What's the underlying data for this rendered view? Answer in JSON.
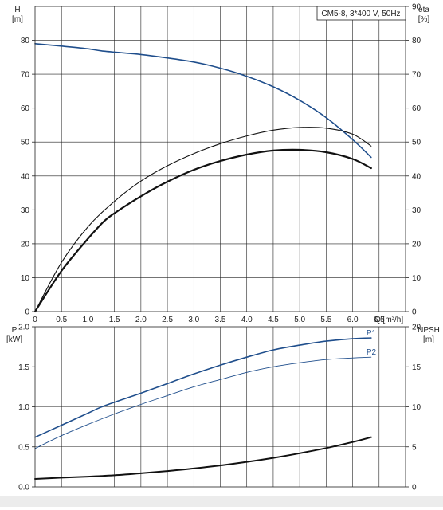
{
  "chart_data": [
    {
      "type": "line",
      "y_left_label": [
        "H",
        "[m]"
      ],
      "y_right_label": [
        "eta",
        "[%]"
      ],
      "x_axis_label": "Q [m³/h]",
      "legend": "CM5-8, 3*400 V, 50Hz",
      "legend_position": "top-right",
      "grid": true,
      "xlim": [
        0,
        7
      ],
      "ylim_left": [
        0,
        90
      ],
      "ylim_right": [
        0,
        90
      ],
      "x_ticks": [
        "0",
        "0.5",
        "1.0",
        "1.5",
        "2.0",
        "2.5",
        "3.0",
        "3.5",
        "4.0",
        "4.5",
        "5.0",
        "5.5",
        "6.0",
        "6.5"
      ],
      "y_ticks_left": [
        "0",
        "10",
        "20",
        "30",
        "40",
        "50",
        "60",
        "70",
        "80"
      ],
      "y_ticks_right": [
        "0",
        "10",
        "20",
        "30",
        "40",
        "50",
        "60",
        "70",
        "80",
        "90"
      ],
      "series": [
        {
          "color": "#1f4e8c",
          "x": [
            0,
            0.5,
            1.0,
            1.3,
            2.0,
            2.5,
            3.0,
            3.5,
            4.0,
            4.5,
            5.0,
            5.5,
            6.0,
            6.35
          ],
          "y": [
            79,
            78.3,
            77.5,
            76.8,
            75.8,
            74.8,
            73.6,
            71.8,
            69.4,
            66.3,
            62.3,
            57.2,
            50.7,
            45.5
          ]
        },
        {
          "color": "#111111",
          "x": [
            0,
            0.5,
            1.0,
            1.5,
            2.0,
            2.5,
            3.0,
            3.5,
            4.0,
            4.5,
            5.0,
            5.5,
            6.0,
            6.35
          ],
          "y": [
            0,
            14.5,
            25,
            32.5,
            38.5,
            43,
            46.6,
            49.5,
            51.8,
            53.5,
            54.3,
            54.1,
            52.3,
            48.8
          ]
        },
        {
          "color": "#111111",
          "x": [
            0,
            0.5,
            1.0,
            1.3,
            1.5,
            2.0,
            2.5,
            3.0,
            3.5,
            4.0,
            4.5,
            5.0,
            5.5,
            6.0,
            6.35
          ],
          "y": [
            0,
            12,
            21.5,
            26.6,
            29,
            34,
            38.3,
            41.8,
            44.4,
            46.3,
            47.5,
            47.7,
            47.0,
            45.0,
            42.3
          ]
        }
      ]
    },
    {
      "type": "line",
      "y_left_label": [
        "P",
        "[kW]"
      ],
      "y_right_label": [
        "NPSH",
        "[m]"
      ],
      "grid": true,
      "xlim": [
        0,
        7
      ],
      "ylim_left": [
        0,
        2.0
      ],
      "ylim_right": [
        0,
        20
      ],
      "y_ticks_left": [
        "0.0",
        "0.5",
        "1.0",
        "1.5",
        "2.0"
      ],
      "y_ticks_right": [
        "0",
        "5",
        "10",
        "15",
        "20"
      ],
      "series": [
        {
          "name": "P1",
          "color": "#1f4e8c",
          "x": [
            0,
            0.5,
            1.0,
            1.3,
            2.0,
            2.5,
            3.0,
            3.5,
            4.0,
            4.5,
            5.0,
            5.5,
            6.0,
            6.35
          ],
          "y": [
            0.62,
            0.77,
            0.92,
            1.01,
            1.17,
            1.29,
            1.41,
            1.52,
            1.62,
            1.71,
            1.77,
            1.82,
            1.85,
            1.86
          ]
        },
        {
          "name": "P2",
          "color": "#1f4e8c",
          "x": [
            0,
            0.5,
            1.0,
            1.5,
            2.0,
            2.5,
            3.0,
            3.5,
            4.0,
            4.5,
            5.0,
            5.5,
            6.0,
            6.35
          ],
          "y": [
            0.48,
            0.64,
            0.78,
            0.91,
            1.03,
            1.14,
            1.25,
            1.34,
            1.43,
            1.5,
            1.55,
            1.59,
            1.61,
            1.62
          ]
        },
        {
          "color": "#111111",
          "x": [
            0,
            0.5,
            1.0,
            1.5,
            2.0,
            2.5,
            3.0,
            3.5,
            4.0,
            4.5,
            5.0,
            5.5,
            6.0,
            6.35
          ],
          "y": [
            1.0,
            1.15,
            1.28,
            1.45,
            1.7,
            1.98,
            2.3,
            2.68,
            3.12,
            3.62,
            4.2,
            4.85,
            5.6,
            6.2
          ]
        }
      ]
    }
  ]
}
